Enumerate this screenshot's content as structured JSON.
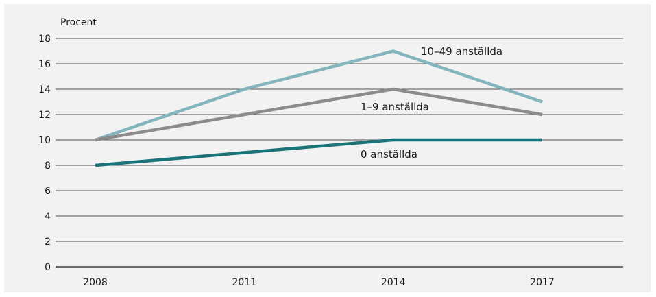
{
  "chart_data": {
    "type": "line",
    "ylabel": "Procent",
    "ylim": [
      0,
      18
    ],
    "yticks": [
      0,
      2,
      4,
      6,
      8,
      10,
      12,
      14,
      16,
      18
    ],
    "categories": [
      "2008",
      "2011",
      "2014",
      "2017"
    ],
    "grid": true,
    "series": [
      {
        "name": "10–49 anställda",
        "values": [
          10,
          14,
          17,
          13
        ],
        "color": "#84b5bd"
      },
      {
        "name": "1–9 anställda",
        "values": [
          10,
          12,
          14,
          12
        ],
        "color": "#8c8c8c"
      },
      {
        "name": "0 anställda",
        "values": [
          8,
          9,
          10,
          10
        ],
        "color": "#1a7378"
      }
    ]
  }
}
